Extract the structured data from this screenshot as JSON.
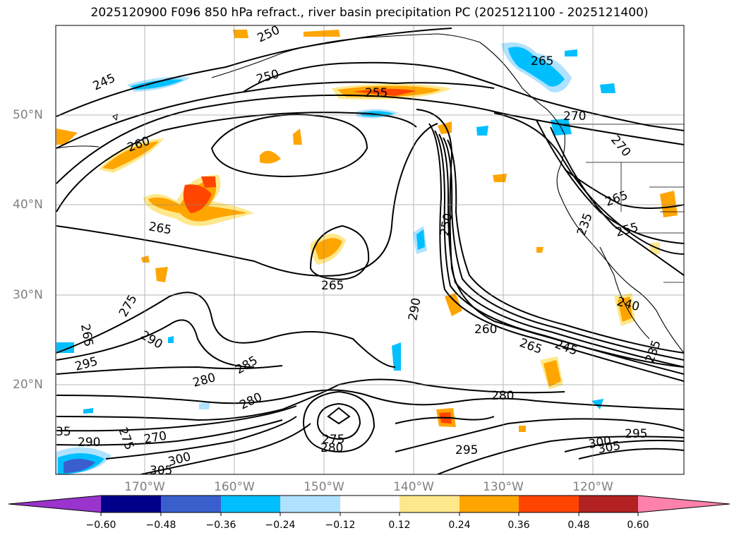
{
  "title": "2025120900 F096 850 hPa refract., river basin precipitation PC (2025121100 - 2025121400)",
  "lat_labels": [
    "50°N",
    "40°N",
    "30°N",
    "20°N"
  ],
  "lon_labels": [
    "170°W",
    "160°W",
    "150°W",
    "140°W",
    "130°W",
    "120°W"
  ],
  "colorbar": {
    "ticks": [
      "−0.60",
      "−0.48",
      "−0.36",
      "−0.24",
      "−0.12",
      "0.12",
      "0.24",
      "0.36",
      "0.48",
      "0.60"
    ],
    "colors": [
      "#9a34cd",
      "#00008b",
      "#3a5fcd",
      "#00bfff",
      "#b0e2ff",
      "#ffffff",
      "#ffe88c",
      "#ffa500",
      "#ff4500",
      "#b22222",
      "#ff82ab"
    ]
  },
  "contour_labels": [
    "250",
    "245",
    "250",
    "255",
    "265",
    "270",
    "270",
    "260",
    "265",
    "265",
    "255",
    "250",
    "235",
    "265",
    "290",
    "260",
    "265",
    "245",
    "240",
    "235",
    "275",
    "290",
    "265",
    "295",
    "280",
    "285",
    "280",
    "280",
    "275",
    "280",
    "295",
    "300",
    "305",
    "295",
    "270",
    "290",
    "275",
    "300",
    "305",
    "35"
  ]
}
